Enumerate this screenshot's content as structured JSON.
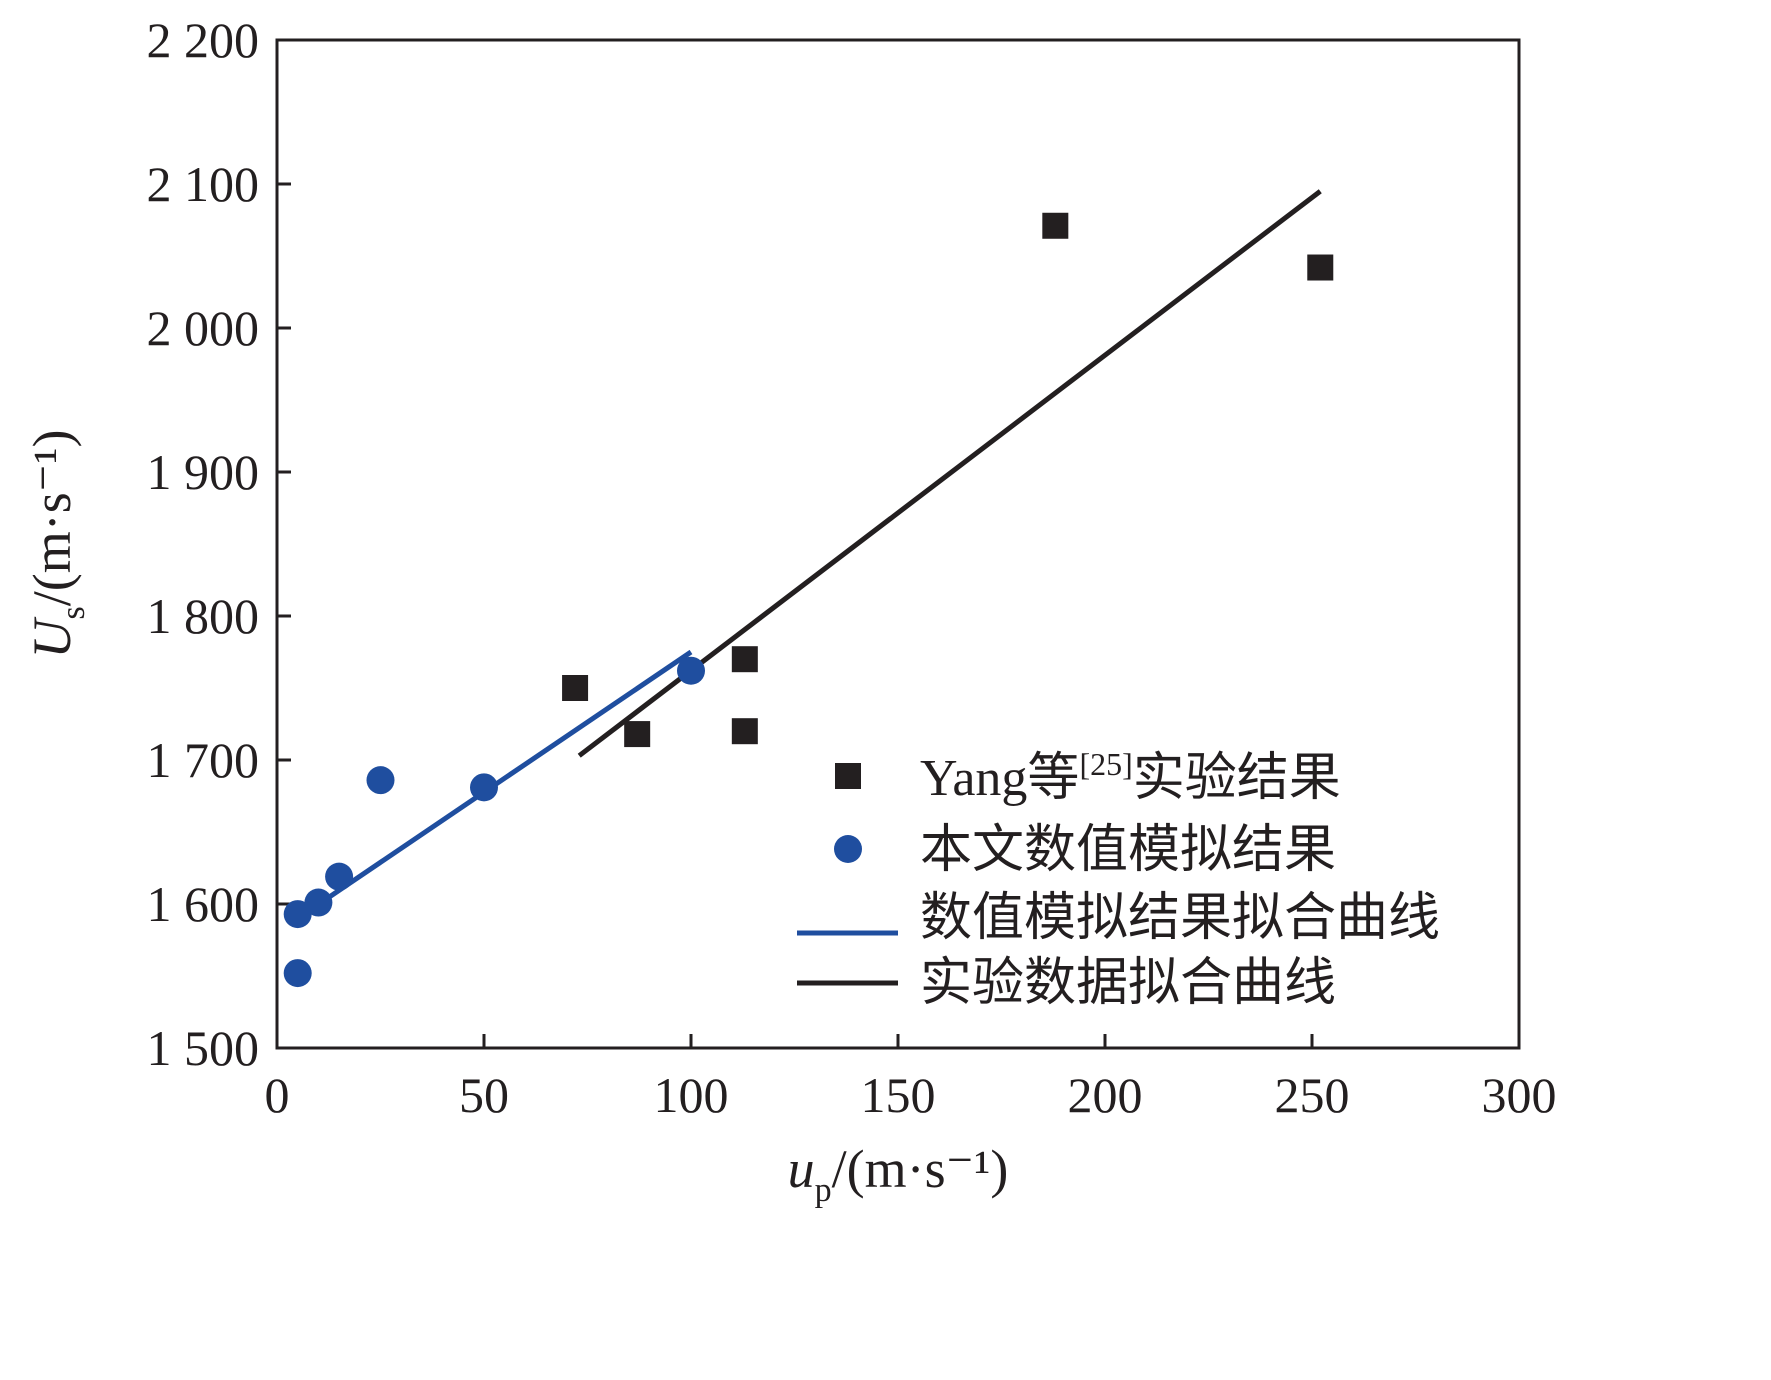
{
  "chart_data": {
    "type": "scatter",
    "title": "",
    "xlabel": {
      "var": "u",
      "sub": "p",
      "unit": "/(m·s⁻¹)"
    },
    "ylabel": {
      "var": "U",
      "sub": "s",
      "unit": "/(m·s⁻¹)"
    },
    "xlim": [
      0,
      300
    ],
    "ylim": [
      1500,
      2200
    ],
    "xticks": [
      0,
      50,
      100,
      150,
      200,
      250,
      300
    ],
    "xtick_labels": [
      "0",
      "50",
      "100",
      "150",
      "200",
      "250",
      "300"
    ],
    "yticks": [
      1500,
      1600,
      1700,
      1800,
      1900,
      2000,
      2100,
      2200
    ],
    "ytick_labels": [
      "1 500",
      "1 600",
      "1 700",
      "1 800",
      "1 900",
      "2 000",
      "2 100",
      "2 200"
    ],
    "grid": false,
    "legend_position": "bottom-right",
    "series": [
      {
        "name": "Yang等[25]实验结果",
        "name_parts": [
          "Yang等",
          "[25]",
          "实验结果"
        ],
        "kind": "scatter",
        "marker": "square",
        "color": "#231f20",
        "x": [
          72,
          87,
          113,
          113,
          188,
          252
        ],
        "y": [
          1750,
          1718,
          1770,
          1720,
          2071,
          2042
        ]
      },
      {
        "name": "本文数值模拟结果",
        "kind": "scatter",
        "marker": "circle",
        "color": "#1f4e9f",
        "x": [
          5,
          5,
          10,
          15,
          25,
          50,
          100
        ],
        "y": [
          1552,
          1593,
          1601,
          1619,
          1686,
          1681,
          1762
        ]
      },
      {
        "name": "数值模拟结果拟合曲线",
        "kind": "line",
        "color": "#1f4e9f",
        "x": [
          5,
          100
        ],
        "y": [
          1590,
          1775
        ]
      },
      {
        "name": "实验数据拟合曲线",
        "kind": "line",
        "color": "#231f20",
        "x": [
          73,
          252
        ],
        "y": [
          1703,
          2095
        ]
      }
    ]
  }
}
